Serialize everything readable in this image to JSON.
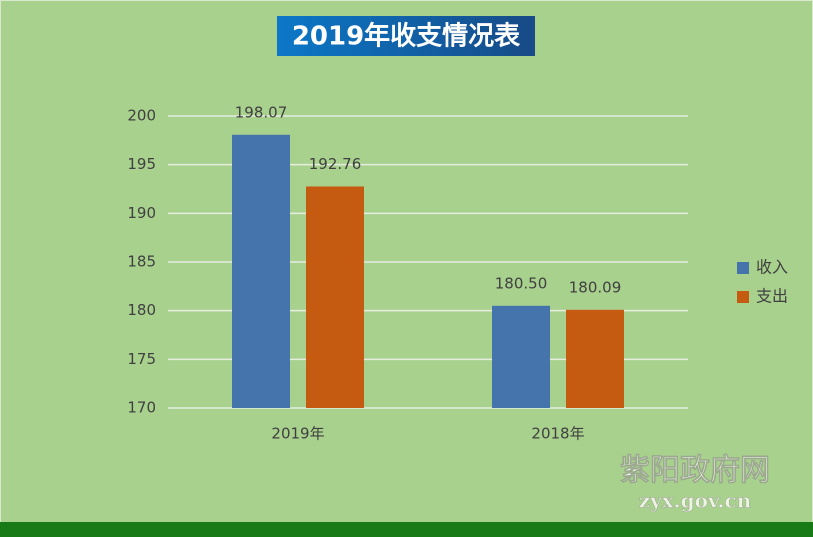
{
  "chart_data": {
    "type": "bar",
    "title": "2019年收支情况表",
    "categories": [
      "2019年",
      "2018年"
    ],
    "series": [
      {
        "name": "收入",
        "color": "#4573ab",
        "values": [
          198.07,
          180.5
        ],
        "value_labels": [
          "198.07",
          "180.50"
        ]
      },
      {
        "name": "支出",
        "color": "#c55a11",
        "values": [
          192.76,
          180.09
        ],
        "value_labels": [
          "192.76",
          "180.09"
        ]
      }
    ],
    "ylim": [
      170,
      200
    ],
    "yticks": [
      170,
      175,
      180,
      185,
      190,
      195,
      200
    ],
    "grid": true,
    "legend": "right"
  },
  "watermark": {
    "name": "紫阳政府网",
    "url": "zyx.gov.cn"
  }
}
